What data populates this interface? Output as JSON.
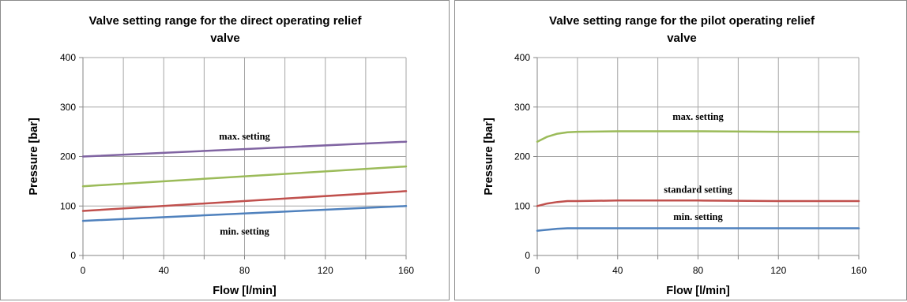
{
  "chart_data": [
    {
      "type": "line",
      "title": "Valve setting range for the direct operating relief valve",
      "title_lines": [
        "Valve setting range for the direct operating relief",
        "valve"
      ],
      "xlabel": "Flow [l/min]",
      "ylabel": "Pressure [bar]",
      "xlim": [
        0,
        160
      ],
      "ylim": [
        0,
        400
      ],
      "xticks": [
        0,
        40,
        80,
        120,
        160
      ],
      "yticks": [
        0,
        100,
        200,
        300,
        400
      ],
      "x_gridlines": [
        0,
        20,
        40,
        60,
        80,
        100,
        120,
        140,
        160
      ],
      "y_gridlines": [
        0,
        100,
        200,
        300,
        400
      ],
      "grid": true,
      "legend": "none",
      "series": [
        {
          "color": "#8064A2",
          "x": [
            0,
            160
          ],
          "y": [
            200,
            230
          ]
        },
        {
          "color": "#9BBB59",
          "x": [
            0,
            160
          ],
          "y": [
            140,
            180
          ]
        },
        {
          "color": "#C0504D",
          "x": [
            0,
            160
          ],
          "y": [
            90,
            130
          ]
        },
        {
          "color": "#4F81BD",
          "x": [
            0,
            160
          ],
          "y": [
            70,
            100
          ]
        }
      ],
      "annotations": [
        {
          "text": "max. setting",
          "x": 80,
          "y": 234
        },
        {
          "text": "min. setting",
          "x": 80,
          "y": 42
        }
      ]
    },
    {
      "type": "line",
      "title": "Valve setting range for the pilot operating relief valve",
      "title_lines": [
        "Valve setting range for the pilot operating relief",
        "valve"
      ],
      "xlabel": "Flow [l/min]",
      "ylabel": "Pressure [bar]",
      "xlim": [
        0,
        160
      ],
      "ylim": [
        0,
        400
      ],
      "xticks": [
        0,
        40,
        80,
        120,
        160
      ],
      "yticks": [
        0,
        100,
        200,
        300,
        400
      ],
      "x_gridlines": [
        0,
        20,
        40,
        60,
        80,
        100,
        120,
        140,
        160
      ],
      "y_gridlines": [
        0,
        100,
        200,
        300,
        400
      ],
      "grid": true,
      "legend": "none",
      "series": [
        {
          "color": "#9BBB59",
          "x": [
            0,
            5,
            10,
            15,
            20,
            40,
            80,
            120,
            160
          ],
          "y": [
            230,
            240,
            246,
            249,
            250,
            251,
            251,
            250,
            250
          ]
        },
        {
          "color": "#C0504D",
          "x": [
            0,
            5,
            10,
            15,
            20,
            40,
            80,
            120,
            160
          ],
          "y": [
            100,
            105,
            108,
            110,
            110,
            111,
            111,
            110,
            110
          ]
        },
        {
          "color": "#4F81BD",
          "x": [
            0,
            5,
            10,
            15,
            20,
            40,
            80,
            120,
            160
          ],
          "y": [
            50,
            52,
            54,
            55,
            55,
            55,
            55,
            55,
            55
          ]
        }
      ],
      "annotations": [
        {
          "text": "max. setting",
          "x": 80,
          "y": 274
        },
        {
          "text": "standard setting",
          "x": 80,
          "y": 127
        },
        {
          "text": "min. setting",
          "x": 80,
          "y": 72
        }
      ]
    }
  ]
}
